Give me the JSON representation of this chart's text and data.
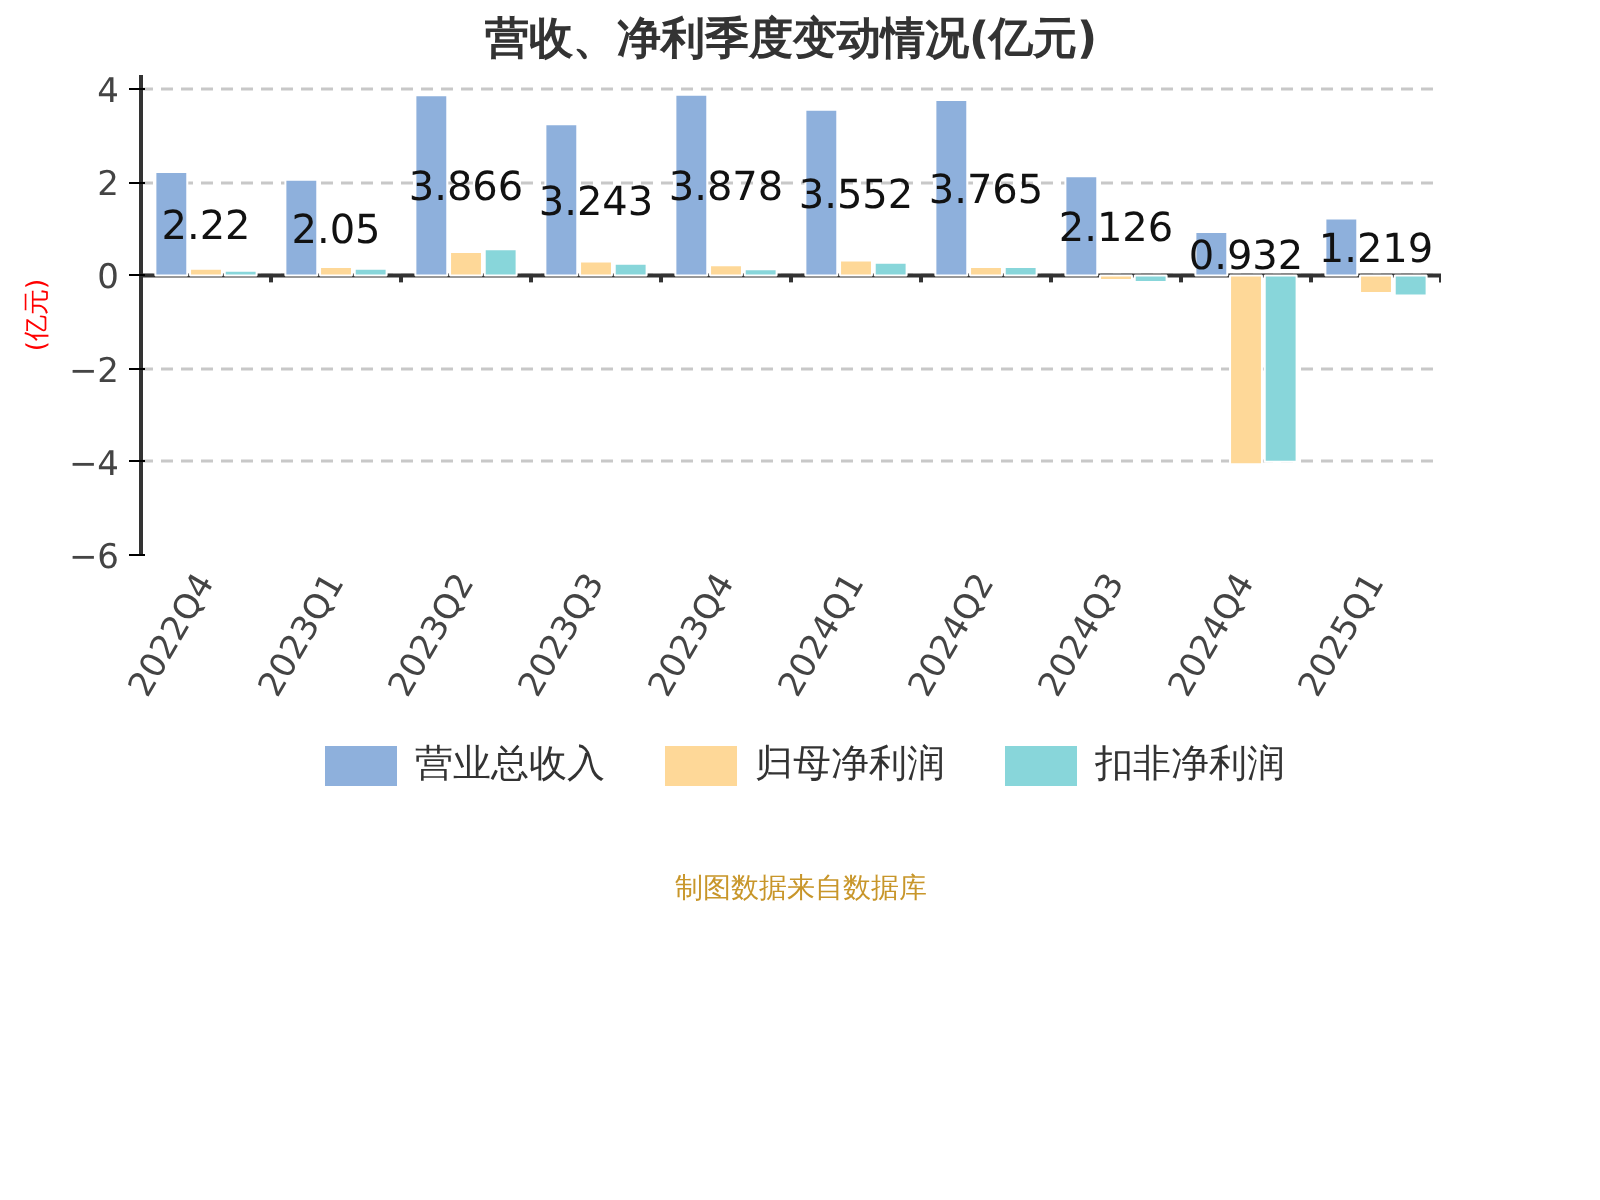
{
  "chart_data": {
    "type": "bar",
    "title": "营收、净利季度变动情况(亿元)",
    "ylabel": "(亿元)",
    "categories": [
      "2022Q4",
      "2023Q1",
      "2023Q2",
      "2023Q3",
      "2023Q4",
      "2024Q1",
      "2024Q2",
      "2024Q3",
      "2024Q4",
      "2025Q1"
    ],
    "series": [
      {
        "name": "营业总收入",
        "color": "#8eb0dc",
        "values": [
          2.22,
          2.05,
          3.866,
          3.243,
          3.878,
          3.552,
          3.765,
          2.126,
          0.932,
          1.219
        ],
        "value_labels": [
          "2.22",
          "2.05",
          "3.866",
          "3.243",
          "3.878",
          "3.552",
          "3.765",
          "2.126",
          "0.932",
          "1.219"
        ]
      },
      {
        "name": "归母净利润",
        "color": "#fed898",
        "values": [
          0.14,
          0.18,
          0.5,
          0.3,
          0.22,
          0.32,
          0.18,
          -0.1,
          -4.05,
          -0.38
        ]
      },
      {
        "name": "扣非净利润",
        "color": "#88d6da",
        "values": [
          0.1,
          0.14,
          0.56,
          0.25,
          0.13,
          0.27,
          0.18,
          -0.14,
          -4.0,
          -0.43
        ]
      }
    ],
    "ylim": [
      -6,
      4.3
    ],
    "yticks": [
      -6,
      -4,
      -2,
      0,
      2,
      4
    ],
    "grid": "y",
    "legend": "bottom",
    "annotations": [
      "制图数据来自数据库"
    ]
  }
}
